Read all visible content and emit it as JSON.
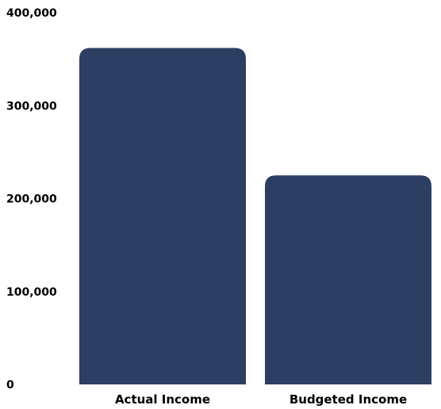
{
  "chart_data": {
    "type": "bar",
    "categories": [
      "Actual Income",
      "Budgeted Income"
    ],
    "values": [
      362000,
      225000
    ],
    "yticks": [
      "0",
      "100,000",
      "200,000",
      "300,000",
      "400,000"
    ],
    "ytick_values": [
      0,
      100000,
      200000,
      300000,
      400000
    ],
    "ylim": [
      0,
      400000
    ],
    "grid": false,
    "legend": "none",
    "colors": {
      "bar": "#2d3e63"
    }
  }
}
